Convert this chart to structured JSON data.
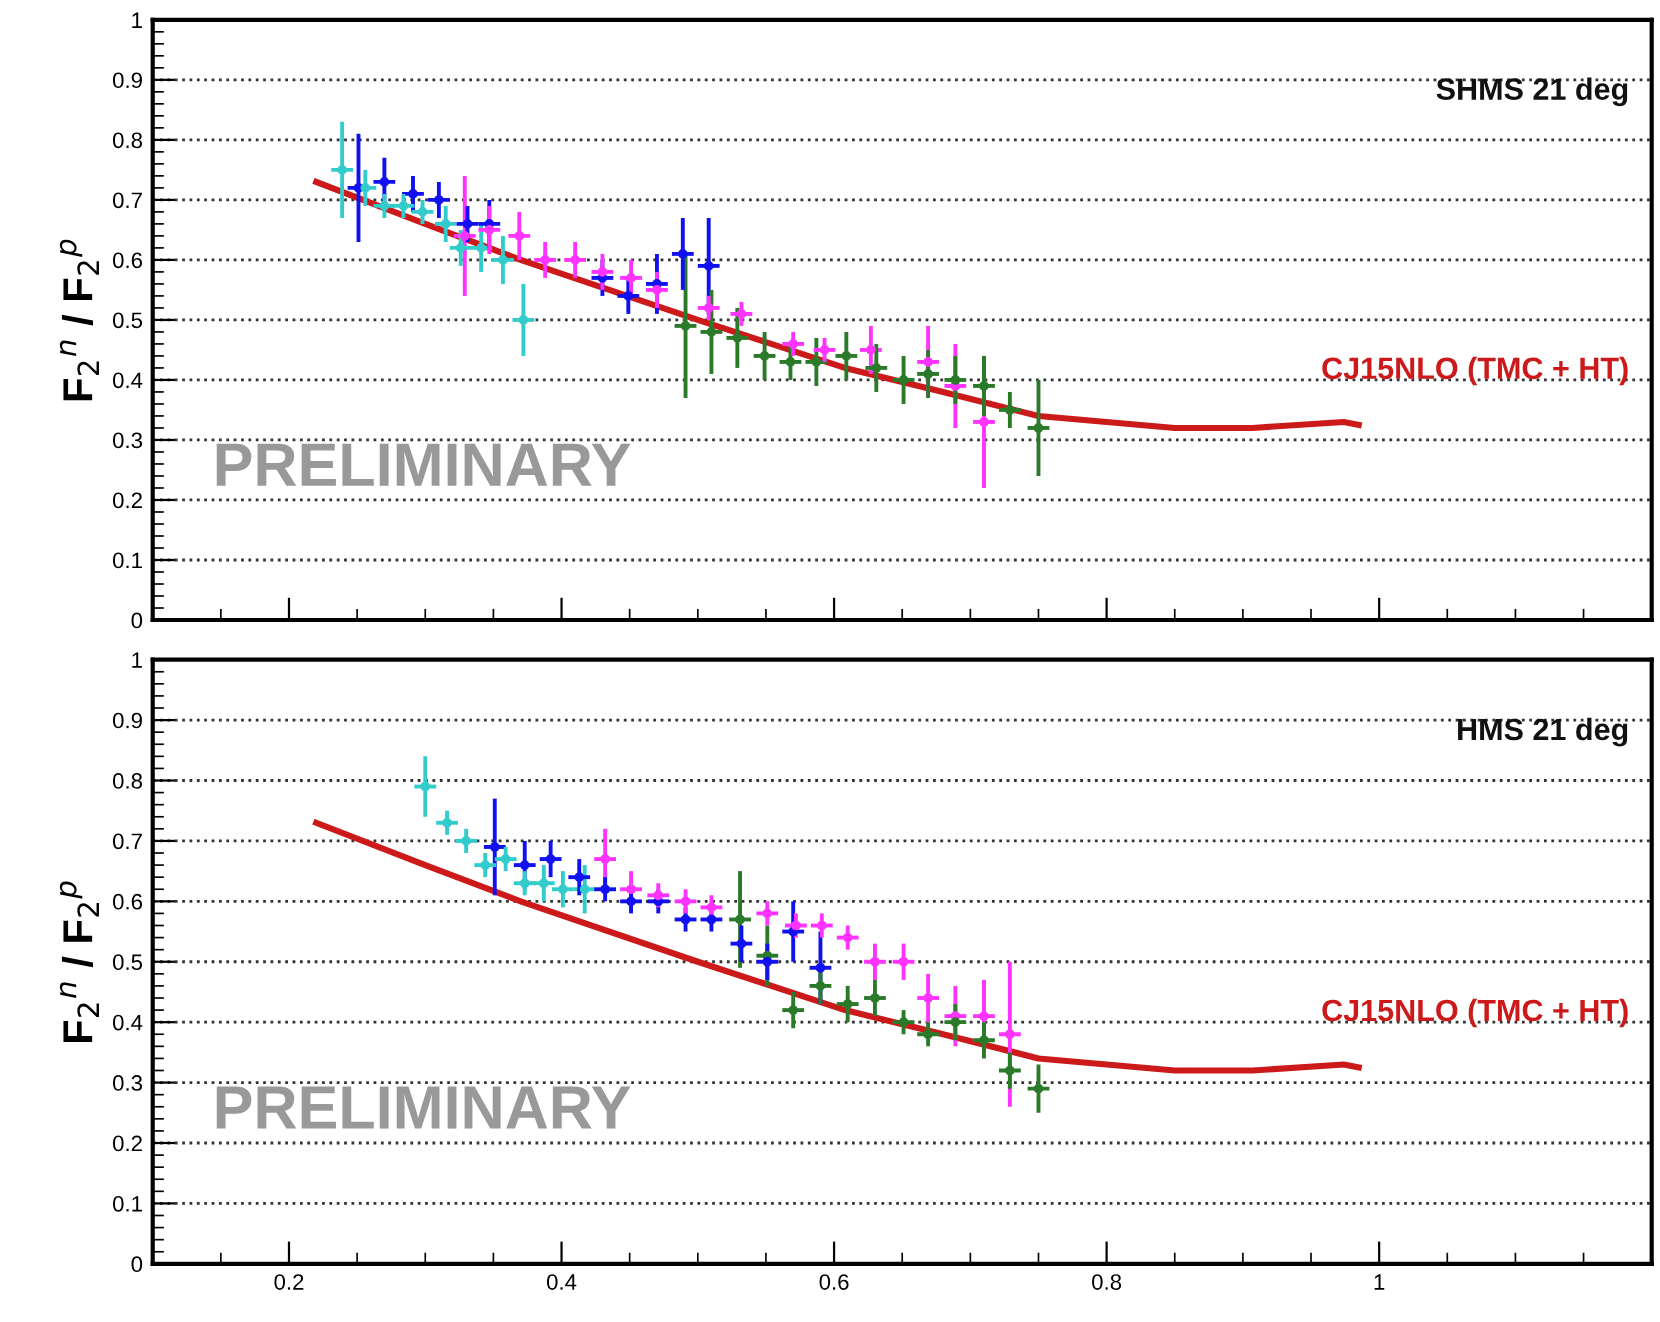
{
  "chart_data": [
    {
      "type": "scatter",
      "ylabel": "F$_{2}$$^{n}$ / F$_{2}$$^{p}$",
      "annotations": [
        "SHMS 21 deg",
        "PRELIMINARY"
      ],
      "xlim": [
        0.1,
        1.2
      ],
      "ylim": [
        0,
        1
      ],
      "xticks": [
        0.2,
        0.4,
        0.6,
        0.8,
        1
      ],
      "yticks": [
        0,
        0.1,
        0.2,
        0.3,
        0.4,
        0.5,
        0.6,
        0.7,
        0.8,
        0.9,
        1
      ],
      "tick_labels": "y",
      "grid": "y",
      "marker": "none",
      "series": [
        {
          "color": "#33cccc",
          "marker": "circle",
          "x": [
            0.239,
            0.256,
            0.27,
            0.284,
            0.298,
            0.315,
            0.326,
            0.341,
            0.357,
            0.372
          ],
          "values": [
            0.75,
            0.72,
            0.69,
            0.69,
            0.68,
            0.66,
            0.62,
            0.62,
            0.6,
            0.5
          ],
          "errors": [
            0.08,
            0.03,
            0.02,
            0.02,
            0.02,
            0.03,
            0.03,
            0.04,
            0.04,
            0.06
          ],
          "xerrors": [
            0.008,
            0.008,
            0.008,
            0.008,
            0.008,
            0.008,
            0.008,
            0.008,
            0.008,
            0.008
          ]
        },
        {
          "color": "#1010f0",
          "marker": "circle",
          "x": [
            0.251,
            0.27,
            0.291,
            0.31,
            0.331,
            0.347,
            0.43,
            0.449,
            0.47,
            0.489,
            0.508
          ],
          "values": [
            0.72,
            0.73,
            0.71,
            0.7,
            0.66,
            0.66,
            0.57,
            0.54,
            0.56,
            0.61,
            0.59
          ],
          "errors": [
            0.09,
            0.04,
            0.03,
            0.03,
            0.03,
            0.04,
            0.03,
            0.03,
            0.05,
            0.06,
            0.08
          ],
          "xerrors": [
            0.008,
            0.008,
            0.008,
            0.008,
            0.008,
            0.008,
            0.008,
            0.008,
            0.008,
            0.008,
            0.008
          ]
        },
        {
          "color": "#ff33ff",
          "marker": "circle",
          "x": [
            0.329,
            0.347,
            0.369,
            0.388,
            0.41,
            0.43,
            0.451,
            0.47,
            0.508,
            0.532,
            0.57,
            0.593,
            0.627,
            0.669,
            0.689,
            0.71
          ],
          "values": [
            0.64,
            0.65,
            0.64,
            0.6,
            0.6,
            0.58,
            0.57,
            0.55,
            0.52,
            0.51,
            0.46,
            0.45,
            0.45,
            0.43,
            0.39,
            0.33
          ],
          "errors": [
            0.1,
            0.04,
            0.04,
            0.03,
            0.03,
            0.03,
            0.03,
            0.03,
            0.02,
            0.02,
            0.02,
            0.02,
            0.04,
            0.06,
            0.07,
            0.11
          ],
          "xerrors": [
            0.008,
            0.008,
            0.008,
            0.008,
            0.008,
            0.008,
            0.008,
            0.008,
            0.008,
            0.008,
            0.008,
            0.008,
            0.008,
            0.008,
            0.008,
            0.008
          ]
        },
        {
          "color": "#2a7a2a",
          "marker": "circle",
          "x": [
            0.491,
            0.51,
            0.529,
            0.549,
            0.568,
            0.587,
            0.609,
            0.631,
            0.651,
            0.669,
            0.689,
            0.71,
            0.729,
            0.75
          ],
          "values": [
            0.49,
            0.48,
            0.47,
            0.44,
            0.43,
            0.43,
            0.44,
            0.42,
            0.4,
            0.41,
            0.4,
            0.39,
            0.35,
            0.32
          ],
          "errors": [
            0.12,
            0.07,
            0.05,
            0.04,
            0.03,
            0.04,
            0.04,
            0.04,
            0.04,
            0.04,
            0.04,
            0.05,
            0.03,
            0.08
          ],
          "xerrors": [
            0.008,
            0.008,
            0.008,
            0.008,
            0.008,
            0.008,
            0.008,
            0.008,
            0.008,
            0.008,
            0.008,
            0.008,
            0.008,
            0.008
          ]
        },
        {
          "type": "line",
          "name": "CJ15NLO (TMC + HT)",
          "color": "#cc1a1a",
          "x": [
            0.22,
            0.3,
            0.37,
            0.5,
            0.608,
            0.68,
            0.75,
            0.85,
            0.907,
            0.974,
            0.985
          ],
          "values": [
            0.73,
            0.66,
            0.6,
            0.5,
            0.42,
            0.38,
            0.34,
            0.32,
            0.32,
            0.33,
            0.325
          ]
        }
      ]
    },
    {
      "type": "scatter",
      "ylabel": "F$_{2}$$^{n}$ / F$_{2}$$^{p}$",
      "annotations": [
        "HMS 21 deg",
        "PRELIMINARY"
      ],
      "xlim": [
        0.1,
        1.2
      ],
      "ylim": [
        0,
        1
      ],
      "xticks": [
        0.2,
        0.4,
        0.6,
        0.8,
        1
      ],
      "yticks": [
        0,
        0.1,
        0.2,
        0.3,
        0.4,
        0.5,
        0.6,
        0.7,
        0.8,
        0.9,
        1
      ],
      "grid": "y",
      "marker": "none",
      "series": [
        {
          "color": "#33cccc",
          "marker": "circle",
          "x": [
            0.3,
            0.316,
            0.33,
            0.344,
            0.359,
            0.373,
            0.387,
            0.401,
            0.417
          ],
          "values": [
            0.79,
            0.73,
            0.7,
            0.66,
            0.67,
            0.63,
            0.63,
            0.62,
            0.62
          ],
          "errors": [
            0.05,
            0.02,
            0.02,
            0.02,
            0.02,
            0.02,
            0.03,
            0.03,
            0.04
          ],
          "xerrors": [
            0.008,
            0.008,
            0.008,
            0.008,
            0.008,
            0.008,
            0.008,
            0.008,
            0.008
          ]
        },
        {
          "color": "#1010f0",
          "marker": "circle",
          "x": [
            0.351,
            0.373,
            0.392,
            0.413,
            0.432,
            0.451,
            0.471,
            0.491,
            0.51,
            0.532,
            0.551,
            0.57,
            0.59
          ],
          "values": [
            0.69,
            0.66,
            0.67,
            0.64,
            0.62,
            0.6,
            0.6,
            0.57,
            0.57,
            0.53,
            0.5,
            0.55,
            0.49
          ],
          "errors": [
            0.08,
            0.04,
            0.03,
            0.03,
            0.02,
            0.02,
            0.02,
            0.02,
            0.02,
            0.03,
            0.03,
            0.05,
            0.06
          ],
          "xerrors": [
            0.008,
            0.008,
            0.008,
            0.008,
            0.008,
            0.008,
            0.008,
            0.008,
            0.008,
            0.008,
            0.008,
            0.008,
            0.008
          ]
        },
        {
          "color": "#ff33ff",
          "marker": "circle",
          "x": [
            0.432,
            0.451,
            0.471,
            0.491,
            0.51,
            0.551,
            0.572,
            0.591,
            0.61,
            0.63,
            0.651,
            0.669,
            0.689,
            0.71,
            0.729
          ],
          "values": [
            0.67,
            0.62,
            0.61,
            0.6,
            0.59,
            0.58,
            0.56,
            0.56,
            0.54,
            0.5,
            0.5,
            0.44,
            0.41,
            0.41,
            0.38
          ],
          "errors": [
            0.05,
            0.03,
            0.02,
            0.02,
            0.02,
            0.02,
            0.02,
            0.02,
            0.02,
            0.03,
            0.03,
            0.04,
            0.05,
            0.06,
            0.12
          ],
          "xerrors": [
            0.008,
            0.008,
            0.008,
            0.008,
            0.008,
            0.008,
            0.008,
            0.008,
            0.008,
            0.008,
            0.008,
            0.008,
            0.008,
            0.008,
            0.008
          ]
        },
        {
          "color": "#2a7a2a",
          "marker": "circle",
          "x": [
            0.531,
            0.551,
            0.57,
            0.59,
            0.61,
            0.63,
            0.651,
            0.669,
            0.689,
            0.71,
            0.729,
            0.75
          ],
          "values": [
            0.57,
            0.51,
            0.42,
            0.46,
            0.43,
            0.44,
            0.4,
            0.38,
            0.4,
            0.37,
            0.32,
            0.29
          ],
          "errors": [
            0.08,
            0.05,
            0.03,
            0.03,
            0.03,
            0.03,
            0.02,
            0.02,
            0.03,
            0.03,
            0.03,
            0.04
          ],
          "xerrors": [
            0.008,
            0.008,
            0.008,
            0.008,
            0.008,
            0.008,
            0.008,
            0.008,
            0.008,
            0.008,
            0.008,
            0.008
          ]
        },
        {
          "type": "line",
          "name": "CJ15NLO (TMC + HT)",
          "color": "#cc1a1a",
          "x": [
            0.22,
            0.3,
            0.37,
            0.5,
            0.608,
            0.68,
            0.75,
            0.85,
            0.907,
            0.974,
            0.985
          ],
          "values": [
            0.73,
            0.66,
            0.6,
            0.5,
            0.42,
            0.38,
            0.34,
            0.32,
            0.32,
            0.33,
            0.325
          ]
        }
      ]
    }
  ]
}
